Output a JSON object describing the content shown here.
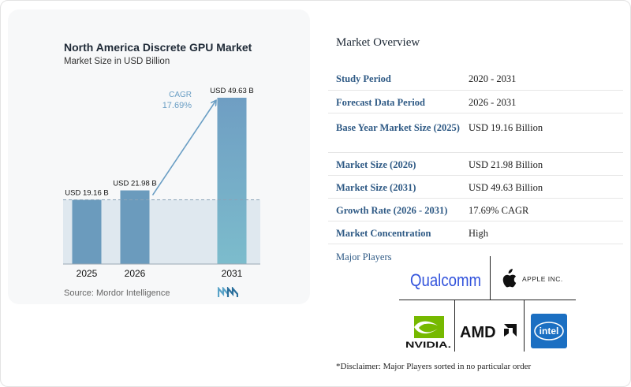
{
  "chart": {
    "title": "North America Discrete GPU Market",
    "subtitle": "Market Size in USD Billion",
    "source": "Source: Mordor Intelligence",
    "cagr_label": "CAGR",
    "cagr_value": "17.69%",
    "bar_color": "#6b9bbd",
    "bar_color_top": "#6f9ec3",
    "bar_color_bottom": "#7cbccc"
  },
  "chart_data": {
    "type": "bar",
    "title": "North America Discrete GPU Market",
    "subtitle": "Market Size in USD Billion",
    "categories": [
      "2025",
      "2026",
      "2031"
    ],
    "values": [
      19.16,
      21.98,
      49.63
    ],
    "data_labels": [
      "USD 19.16 B",
      "USD 21.98 B",
      "USD 49.63 B"
    ],
    "annotation": "CAGR 17.69%",
    "ylim": [
      0,
      49.63
    ],
    "grid": false
  },
  "overview": {
    "title": "Market Overview",
    "rows": [
      {
        "label": "Study Period",
        "value": "2020 - 2031"
      },
      {
        "label": "Forecast Data Period",
        "value": "2026 - 2031"
      },
      {
        "label": "Base Year Market Size (2025)",
        "value": "USD 19.16 Billion"
      },
      {
        "label": "Market Size (2026)",
        "value": "USD 21.98 Billion"
      },
      {
        "label": "Market Size (2031)",
        "value": "USD 49.63 Billion"
      },
      {
        "label": "Growth Rate (2026 - 2031)",
        "value": "17.69% CAGR"
      },
      {
        "label": "Market Concentration",
        "value": "High"
      }
    ]
  },
  "players": {
    "title": "Major Players",
    "qualcomm": "Qualcomm",
    "apple": "APPLE INC.",
    "nvidia": "NVIDIA.",
    "amd": "AMD",
    "intel": "intel",
    "disclaimer": "*Disclaimer: Major Players sorted in no particular order"
  }
}
